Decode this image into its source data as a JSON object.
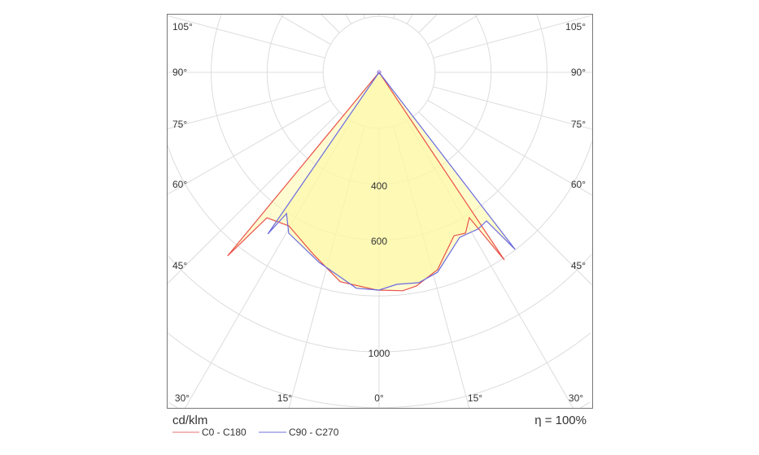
{
  "chart_data": {
    "type": "polar",
    "unit_label": "cd/klm",
    "efficiency_label": "η = 100%",
    "radial_ticks": [
      200,
      400,
      600,
      800,
      1000,
      1200,
      1400
    ],
    "radial_tick_labels": [
      "400",
      "600",
      "1000"
    ],
    "angle_labels_left": [
      "105°",
      "90°",
      "75°",
      "60°",
      "45°"
    ],
    "angle_labels_bottom": [
      "30°",
      "15°",
      "0°",
      "15°",
      "30°"
    ],
    "angle_labels_right": [
      "105°",
      "90°",
      "75°",
      "60°",
      "45°"
    ],
    "grid": true,
    "legend_position": "bottom-left",
    "series": [
      {
        "name": "C0 - C180",
        "color": "#e8524a",
        "angles": [
          -90,
          -39.5,
          -37.6,
          -30.4,
          -19.9,
          -10.5,
          -0.6,
          6.2,
          9.9,
          16.5,
          24.6,
          28.2,
          31.8,
          33.7,
          90
        ],
        "values": [
          0,
          851,
          657,
          637,
          692,
          762,
          779,
          786,
          776,
          736,
          643,
          653,
          612,
          807,
          0
        ]
      },
      {
        "name": "C90 - C270",
        "color": "#6a6ae0",
        "angles": [
          -90,
          -34.5,
          -33.2,
          -29.3,
          -17.5,
          -6,
          0,
          4.8,
          10.7,
          16.3,
          26,
          32.3,
          35.8,
          37.5,
          90
        ],
        "values": [
          0,
          702,
          604,
          660,
          713,
          777,
          779,
          761,
          766,
          745,
          657,
          663,
          656,
          799,
          0
        ]
      }
    ]
  }
}
